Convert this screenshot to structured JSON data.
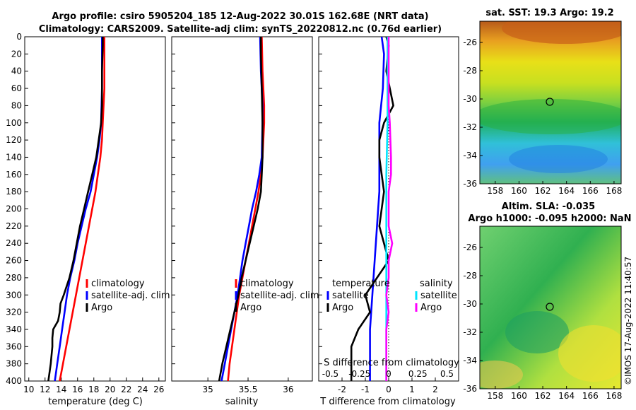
{
  "header": {
    "title_line1": "Argo profile: csiro 5905204_185 12-Aug-2022 30.01S 162.68E (NRT data)",
    "title_line2": "Climatology: CARS2009. Satellite-adj clim: synTS_20220812.nc (0.76d earlier)"
  },
  "colors": {
    "climatology": "#ff0000",
    "satellite": "#0000ff",
    "argo": "#000000",
    "sal_satellite": "#00e5ff",
    "sal_argo": "#ff00ff"
  },
  "chart_data": [
    {
      "type": "line",
      "id": "temperature",
      "xlabel": "temperature (deg C)",
      "ylabel": "",
      "xlim": [
        9.5,
        26.8
      ],
      "ylim": [
        400,
        0
      ],
      "xticks": [
        10,
        12,
        14,
        16,
        18,
        20,
        22,
        24,
        26
      ],
      "yticks": [
        0,
        20,
        40,
        60,
        80,
        100,
        120,
        140,
        160,
        180,
        200,
        220,
        240,
        260,
        280,
        300,
        320,
        340,
        360,
        380,
        400
      ],
      "legend": {
        "position": "center-right",
        "entries": [
          "climatology",
          "satellite-adj. clim",
          "Argo"
        ]
      },
      "series": [
        {
          "name": "climatology",
          "color": "red",
          "depth": [
            0,
            20,
            60,
            100,
            120,
            140,
            160,
            180,
            200,
            220,
            240,
            260,
            280,
            300,
            320,
            340,
            360,
            380,
            400
          ],
          "values": [
            19.3,
            19.3,
            19.3,
            19.1,
            19.0,
            18.8,
            18.5,
            18.2,
            17.8,
            17.4,
            17.0,
            16.6,
            16.2,
            15.8,
            15.4,
            15.0,
            14.6,
            14.2,
            13.8
          ]
        },
        {
          "name": "satellite-adj. clim",
          "color": "blue",
          "depth": [
            0,
            20,
            60,
            100,
            120,
            140,
            160,
            180,
            200,
            220,
            240,
            260,
            280,
            300,
            320,
            340,
            360,
            380,
            400
          ],
          "values": [
            19.0,
            19.0,
            19.0,
            18.9,
            18.7,
            18.4,
            18.0,
            17.6,
            17.0,
            16.5,
            16.0,
            15.6,
            15.1,
            14.7,
            14.4,
            14.1,
            13.8,
            13.5,
            13.2
          ]
        },
        {
          "name": "Argo",
          "color": "black",
          "depth": [
            0,
            10,
            40,
            80,
            100,
            120,
            140,
            160,
            180,
            200,
            220,
            240,
            260,
            280,
            300,
            310,
            320,
            330,
            340,
            350,
            360,
            380,
            400
          ],
          "values": [
            19.1,
            19.1,
            19.0,
            19.0,
            18.9,
            18.6,
            18.3,
            17.8,
            17.3,
            16.8,
            16.3,
            15.9,
            15.5,
            15.0,
            14.3,
            13.9,
            13.8,
            13.6,
            13.0,
            12.9,
            12.9,
            12.7,
            12.4
          ]
        }
      ]
    },
    {
      "type": "line",
      "id": "salinity",
      "xlabel": "salinity",
      "ylabel": "",
      "xlim": [
        34.55,
        36.3
      ],
      "ylim": [
        400,
        0
      ],
      "xticks": [
        35,
        35.5,
        36
      ],
      "xticklabels": [
        "35",
        "35.5",
        "36"
      ],
      "legend": {
        "position": "center-right",
        "entries": [
          "climatology",
          "satellite-adj. clim",
          "Argo"
        ]
      },
      "series": [
        {
          "name": "climatology",
          "color": "red",
          "depth": [
            0,
            40,
            80,
            100,
            140,
            160,
            180,
            200,
            220,
            240,
            260,
            280,
            300,
            320,
            340,
            360,
            380,
            400
          ],
          "values": [
            35.67,
            35.68,
            35.7,
            35.7,
            35.68,
            35.66,
            35.63,
            35.59,
            35.55,
            35.51,
            35.47,
            35.43,
            35.39,
            35.36,
            35.33,
            35.3,
            35.27,
            35.25
          ]
        },
        {
          "name": "satellite-adj. clim",
          "color": "blue",
          "depth": [
            0,
            40,
            80,
            100,
            140,
            160,
            180,
            200,
            220,
            240,
            260,
            280,
            300,
            320,
            340,
            360,
            380,
            400
          ],
          "values": [
            35.65,
            35.66,
            35.68,
            35.68,
            35.67,
            35.64,
            35.6,
            35.55,
            35.51,
            35.47,
            35.43,
            35.4,
            35.37,
            35.33,
            35.29,
            35.25,
            35.21,
            35.17
          ]
        },
        {
          "name": "Argo",
          "color": "black",
          "depth": [
            0,
            20,
            60,
            100,
            140,
            160,
            180,
            200,
            220,
            240,
            260,
            280,
            300,
            320,
            340,
            360,
            380,
            400
          ],
          "values": [
            35.66,
            35.66,
            35.67,
            35.68,
            35.68,
            35.67,
            35.66,
            35.62,
            35.57,
            35.52,
            35.47,
            35.42,
            35.38,
            35.33,
            35.28,
            35.23,
            35.18,
            35.14
          ]
        }
      ]
    },
    {
      "type": "line",
      "id": "differences",
      "xlabel": "T difference from climatology",
      "top_label": "S difference from climatology",
      "xlim": [
        -3,
        3
      ],
      "ylim": [
        400,
        0
      ],
      "xticks": [
        -2,
        -1,
        0,
        1,
        2
      ],
      "xticklabels": [
        "-2",
        "-1",
        "0",
        "1",
        "2"
      ],
      "s_xticks": [
        -0.5,
        -0.25,
        0,
        0.25,
        0.5
      ],
      "s_xticklabels": [
        "-0.5",
        "-0.25",
        "0",
        "0.25",
        "0.5"
      ],
      "legend": {
        "left_title": "temperature",
        "right_title": "salinity",
        "entries": [
          "satellite",
          "Argo",
          "satellite",
          "Argo"
        ]
      },
      "series": [
        {
          "name": "temperature satellite",
          "color": "blue",
          "depth": [
            0,
            20,
            60,
            100,
            140,
            180,
            220,
            260,
            300,
            340,
            400
          ],
          "values": [
            -0.3,
            -0.2,
            -0.25,
            -0.4,
            -0.4,
            -0.4,
            -0.5,
            -0.6,
            -0.7,
            -0.8,
            -0.8
          ]
        },
        {
          "name": "temperature Argo",
          "color": "black",
          "depth": [
            0,
            10,
            40,
            80,
            100,
            120,
            140,
            180,
            220,
            260,
            300,
            320,
            340,
            360,
            400
          ],
          "values": [
            -0.1,
            0.0,
            -0.1,
            0.2,
            -0.2,
            -0.4,
            -0.4,
            -0.2,
            -0.4,
            0.0,
            -1.0,
            -0.8,
            -1.3,
            -1.6,
            -1.6
          ]
        },
        {
          "name": "salinity satellite",
          "color": "cyan",
          "depth": [
            0,
            40,
            100,
            160,
            220,
            280,
            340,
            400
          ],
          "values": [
            -0.01,
            -0.01,
            -0.01,
            -0.02,
            -0.02,
            -0.02,
            -0.02,
            -0.02
          ]
        },
        {
          "name": "salinity Argo",
          "color": "magenta",
          "depth": [
            0,
            20,
            80,
            100,
            140,
            160,
            180,
            220,
            240,
            260,
            280,
            300,
            320,
            340,
            360,
            400
          ],
          "values": [
            0.0,
            0.0,
            0.0,
            0.01,
            0.02,
            0.02,
            0.0,
            0.0,
            0.03,
            0.0,
            0.0,
            -0.02,
            0.0,
            -0.02,
            -0.02,
            -0.02
          ]
        }
      ]
    },
    {
      "type": "heatmap",
      "id": "sst_map",
      "title": "sat. SST: 19.3 Argo: 19.2",
      "xlim": [
        156.7,
        168.6
      ],
      "ylim": [
        -36,
        -24.5
      ],
      "xticks": [
        158,
        160,
        162,
        164,
        166,
        168
      ],
      "yticks": [
        -26,
        -28,
        -30,
        -32,
        -34,
        -36
      ],
      "marker": {
        "lon": 162.68,
        "lat": -30.01
      }
    },
    {
      "type": "heatmap",
      "id": "sla_map",
      "title": "Altim. SLA: -0.035",
      "subtitle": "Argo h1000: -0.095 h2000: NaN",
      "xlim": [
        156.7,
        168.6
      ],
      "ylim": [
        -36,
        -24.5
      ],
      "xticks": [
        158,
        160,
        162,
        164,
        166,
        168
      ],
      "yticks": [
        -26,
        -28,
        -30,
        -32,
        -34,
        -36
      ],
      "marker": {
        "lon": 162.68,
        "lat": -30.01
      }
    }
  ],
  "footer": {
    "stamp": "©IMOS 17-Aug-2022 11:40:57"
  }
}
